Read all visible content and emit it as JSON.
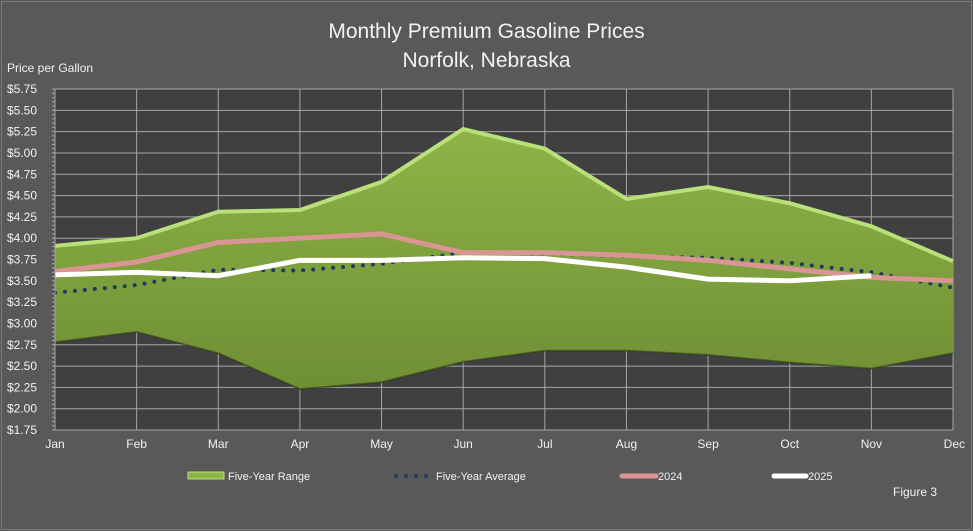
{
  "chart_data": {
    "type": "area",
    "title": "Monthly Premium Gasoline Prices",
    "subtitle": "Norfolk, Nebraska",
    "ylabel": "Price per Gallon",
    "xlabel": "",
    "categories": [
      "Jan",
      "Feb",
      "Mar",
      "Apr",
      "May",
      "Jun",
      "Jul",
      "Aug",
      "Sep",
      "Oct",
      "Nov",
      "Dec"
    ],
    "ylim": [
      1.75,
      5.75
    ],
    "ytick_step": 0.25,
    "yticks": [
      "$1.75",
      "$2.00",
      "$2.25",
      "$2.50",
      "$2.75",
      "$3.00",
      "$3.25",
      "$3.50",
      "$3.75",
      "$4.00",
      "$4.25",
      "$4.50",
      "$4.75",
      "$5.00",
      "$5.25",
      "$5.50",
      "$5.75"
    ],
    "grid": true,
    "legend_position": "bottom",
    "range": {
      "name": "Five-Year Range",
      "upper": [
        3.91,
        4.0,
        4.31,
        4.33,
        4.66,
        5.28,
        5.05,
        4.46,
        4.6,
        4.41,
        4.14,
        3.73
      ],
      "lower": [
        2.78,
        2.9,
        2.65,
        2.23,
        2.31,
        2.55,
        2.68,
        2.68,
        2.63,
        2.54,
        2.47,
        2.65
      ],
      "color": "#7ea13a"
    },
    "series": [
      {
        "name": "Five-Year Average",
        "style": "dotted",
        "color": "#1f3a5f",
        "values": [
          3.36,
          3.45,
          3.63,
          3.62,
          3.7,
          3.83,
          3.82,
          3.79,
          3.77,
          3.71,
          3.6,
          3.42
        ]
      },
      {
        "name": "2024",
        "style": "solid",
        "color": "#d99594",
        "values": [
          3.61,
          3.72,
          3.95,
          4.0,
          4.05,
          3.83,
          3.83,
          3.8,
          3.74,
          3.64,
          3.54,
          3.5
        ]
      },
      {
        "name": "2025",
        "style": "solid",
        "color": "#ffffff",
        "values": [
          3.57,
          3.6,
          3.56,
          3.74,
          3.74,
          3.77,
          3.76,
          3.66,
          3.52,
          3.5,
          3.56,
          null
        ]
      }
    ]
  },
  "figure_label": "Figure 3"
}
